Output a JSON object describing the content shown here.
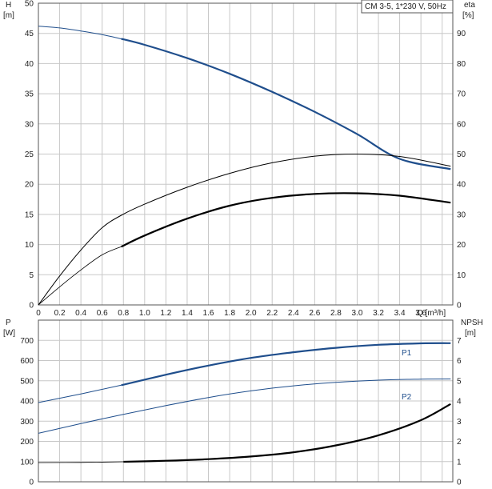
{
  "chart_data": [
    {
      "type": "line",
      "title": "CM 3-5, 1*230 V, 50Hz",
      "xlabel": "Q [m³/h]",
      "ylabel_left": {
        "symbol": "H",
        "unit": "[m]"
      },
      "ylabel_right": {
        "symbol": "eta",
        "unit": "[%]"
      },
      "xlim": [
        0,
        3.9
      ],
      "ylim_left": [
        0,
        50
      ],
      "ylim_right": [
        0,
        100
      ],
      "x_ticks": [
        "0",
        "0.2",
        "0.4",
        "0.6",
        "0.8",
        "1.0",
        "1.2",
        "1.4",
        "1.6",
        "1.8",
        "2.0",
        "2.2",
        "2.4",
        "2.6",
        "2.8",
        "3.0",
        "3.2",
        "3.4",
        "3.6"
      ],
      "y_ticks_left": [
        "0",
        "5",
        "10",
        "15",
        "20",
        "25",
        "30",
        "35",
        "40",
        "45",
        "50"
      ],
      "y_ticks_right": [
        "0",
        "10",
        "20",
        "30",
        "40",
        "50",
        "60",
        "70",
        "80",
        "90"
      ],
      "grid": true,
      "series": [
        {
          "axis": "left",
          "color": "#1f4e8c",
          "style": "head",
          "x": [
            0,
            0.2,
            0.4,
            0.6,
            0.78,
            1.0,
            1.4,
            1.8,
            2.2,
            2.6,
            3.0,
            3.4,
            3.88
          ],
          "y": [
            46.2,
            45.9,
            45.4,
            44.8,
            44.1,
            43.1,
            40.9,
            38.3,
            35.3,
            32.0,
            28.3,
            24.2,
            22.5
          ]
        },
        {
          "axis": "right",
          "color": "#000000",
          "style": "thin",
          "x": [
            0,
            0.2,
            0.4,
            0.6,
            0.78,
            1.0,
            1.4,
            1.8,
            2.2,
            2.6,
            3.0,
            3.4,
            3.88
          ],
          "y": [
            0,
            9.6,
            18.2,
            25.6,
            29.7,
            33.4,
            39.0,
            43.6,
            47.1,
            49.3,
            50.0,
            49.2,
            46.0
          ]
        },
        {
          "axis": "right",
          "color": "#000000",
          "style": "thick",
          "x": [
            0,
            0.2,
            0.4,
            0.6,
            0.78,
            1.0,
            1.4,
            1.8,
            2.2,
            2.6,
            3.0,
            3.4,
            3.88
          ],
          "y": [
            0,
            6.0,
            11.6,
            16.6,
            19.3,
            23.0,
            28.6,
            32.9,
            35.5,
            36.8,
            37.0,
            36.2,
            33.9
          ]
        }
      ]
    },
    {
      "type": "line",
      "xlabel": "",
      "ylabel_left": {
        "symbol": "P",
        "unit": "[W]"
      },
      "ylabel_right": {
        "symbol": "NPSH",
        "unit": "[m]"
      },
      "xlim": [
        0,
        3.9
      ],
      "ylim_left": [
        0,
        800
      ],
      "ylim_right": [
        0,
        8
      ],
      "y_ticks_left": [
        "0",
        "100",
        "200",
        "300",
        "400",
        "500",
        "600",
        "700"
      ],
      "y_ticks_right": [
        "0",
        "1",
        "2",
        "3",
        "4",
        "5",
        "6",
        "7"
      ],
      "grid": true,
      "series": [
        {
          "name": "P1",
          "axis": "left",
          "color": "#1f4e8c",
          "style": "head",
          "x": [
            0,
            0.4,
            0.78,
            1.2,
            1.6,
            2.0,
            2.4,
            2.8,
            3.2,
            3.6,
            3.88
          ],
          "y": [
            392,
            435,
            478,
            530,
            575,
            613,
            641,
            663,
            678,
            685,
            686
          ]
        },
        {
          "name": "P2",
          "axis": "left",
          "color": "#1f4e8c",
          "style": "thin",
          "x": [
            0,
            0.4,
            0.8,
            1.2,
            1.6,
            2.0,
            2.4,
            2.8,
            3.2,
            3.6,
            3.88
          ],
          "y": [
            240,
            288,
            334,
            377,
            417,
            450,
            475,
            492,
            503,
            508,
            509
          ]
        },
        {
          "axis": "right",
          "color": "#000000",
          "style": "thick",
          "x": [
            0,
            0.4,
            0.8,
            1.2,
            1.6,
            2.0,
            2.4,
            2.8,
            3.2,
            3.6,
            3.88
          ],
          "y": [
            0.95,
            0.96,
            0.99,
            1.04,
            1.12,
            1.25,
            1.46,
            1.8,
            2.3,
            3.05,
            3.85
          ]
        }
      ]
    }
  ]
}
